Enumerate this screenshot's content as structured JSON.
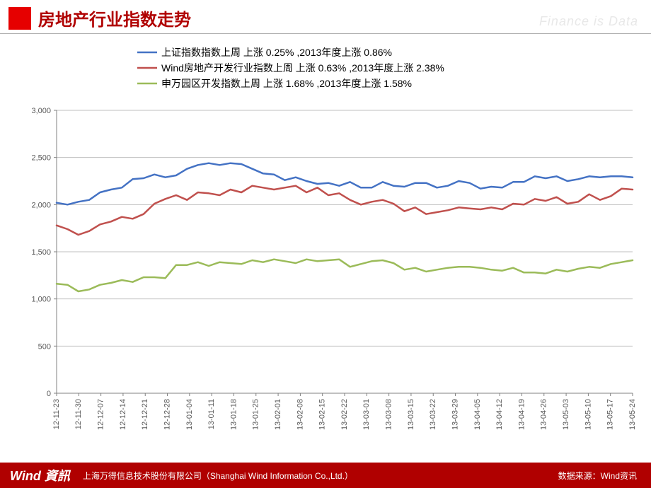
{
  "header": {
    "title": "房地产行业指数走势",
    "watermark": "Finance is Data"
  },
  "footer": {
    "logo": "Wind 資訊",
    "company": "上海万得信息技术股份有限公司（Shanghai Wind Information Co.,Ltd.）",
    "source": "数据来源：Wind资讯"
  },
  "chart": {
    "type": "line",
    "background_color": "#ffffff",
    "grid_color": "#bfbfbf",
    "axis_color": "#808080",
    "tick_font_size": 11,
    "tick_color": "#595959",
    "line_width": 2.5,
    "ylim": [
      0,
      3000
    ],
    "ytick_step": 500,
    "yticks_label": [
      "0",
      "500",
      "1,000",
      "1,500",
      "2,000",
      "2,500",
      "3,000"
    ],
    "x_labels": [
      "12-11-23",
      "12-11-30",
      "12-12-07",
      "12-12-14",
      "12-12-21",
      "12-12-28",
      "13-01-04",
      "13-01-11",
      "13-01-18",
      "13-01-25",
      "13-02-01",
      "13-02-08",
      "13-02-15",
      "13-02-22",
      "13-03-01",
      "13-03-08",
      "13-03-15",
      "13-03-22",
      "13-03-29",
      "13-04-05",
      "13-04-12",
      "13-04-19",
      "13-04-26",
      "13-05-03",
      "13-05-10",
      "13-05-17",
      "13-05-24"
    ],
    "legend": {
      "position_top": true,
      "font_size": 14,
      "text_color": "#000000"
    },
    "series": [
      {
        "name": "上证指数指数上周 上涨 0.25% ,2013年度上涨 0.86%",
        "color": "#4472c4",
        "values": [
          2020,
          2000,
          2030,
          2050,
          2130,
          2160,
          2180,
          2270,
          2280,
          2320,
          2290,
          2310,
          2380,
          2420,
          2440,
          2420,
          2440,
          2430,
          2380,
          2330,
          2320,
          2260,
          2290,
          2250,
          2220,
          2230,
          2200,
          2240,
          2180,
          2180,
          2240,
          2200,
          2190,
          2230,
          2230,
          2180,
          2200,
          2250,
          2230,
          2170,
          2190,
          2180,
          2240,
          2240,
          2300,
          2280,
          2300,
          2250,
          2270,
          2300,
          2290,
          2300,
          2300,
          2290
        ]
      },
      {
        "name": "Wind房地产开发行业指数上周 上涨 0.63% ,2013年度上涨 2.38%",
        "color": "#c0504d",
        "values": [
          1780,
          1740,
          1680,
          1720,
          1790,
          1820,
          1870,
          1850,
          1900,
          2010,
          2060,
          2100,
          2050,
          2130,
          2120,
          2100,
          2160,
          2130,
          2200,
          2180,
          2160,
          2180,
          2200,
          2130,
          2180,
          2100,
          2120,
          2050,
          2000,
          2030,
          2050,
          2010,
          1930,
          1970,
          1900,
          1920,
          1940,
          1970,
          1960,
          1950,
          1970,
          1950,
          2010,
          2000,
          2060,
          2040,
          2080,
          2010,
          2030,
          2110,
          2050,
          2090,
          2170,
          2160
        ]
      },
      {
        "name": "申万园区开发指数上周 上涨 1.68% ,2013年度上涨 1.58%",
        "color": "#9bbb59",
        "values": [
          1160,
          1150,
          1080,
          1100,
          1150,
          1170,
          1200,
          1180,
          1230,
          1230,
          1220,
          1360,
          1360,
          1390,
          1350,
          1390,
          1380,
          1370,
          1410,
          1390,
          1420,
          1400,
          1380,
          1420,
          1400,
          1410,
          1420,
          1340,
          1370,
          1400,
          1410,
          1380,
          1310,
          1330,
          1290,
          1310,
          1330,
          1340,
          1340,
          1330,
          1310,
          1300,
          1330,
          1280,
          1280,
          1270,
          1310,
          1290,
          1320,
          1340,
          1330,
          1370,
          1390,
          1410
        ]
      }
    ]
  }
}
